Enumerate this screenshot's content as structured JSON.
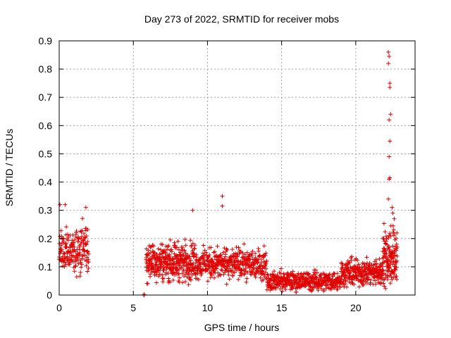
{
  "chart_data": {
    "type": "scatter",
    "title": "Day 273 of 2022, SRMTID for receiver mobs",
    "xlabel": "GPS time / hours",
    "ylabel": "SRMTID / TECUs",
    "xlim": [
      0,
      24
    ],
    "ylim": [
      0,
      0.9
    ],
    "xticks": [
      0,
      5,
      10,
      15,
      20
    ],
    "xtick_labels": [
      "0",
      "5",
      "10",
      "15",
      "20"
    ],
    "yticks": [
      0,
      0.1,
      0.2,
      0.3,
      0.4,
      0.5,
      0.6,
      0.7,
      0.8,
      0.9
    ],
    "ytick_labels": [
      "0",
      "0.1",
      "0.2",
      "0.3",
      "0.4",
      "0.5",
      "0.6",
      "0.7",
      "0.8",
      "0.9"
    ],
    "grid": true,
    "marker": "+",
    "color": "#e00000",
    "series": [
      {
        "name": "mobs",
        "segments": [
          {
            "x_range": [
              0.0,
              2.0
            ],
            "base": 0.16,
            "spread": 0.06,
            "count": 180
          },
          {
            "x_range": [
              5.7,
              5.75
            ],
            "base": 0.002,
            "spread": 0.002,
            "count": 4
          },
          {
            "x_range": [
              5.85,
              9.2
            ],
            "base": 0.12,
            "spread": 0.05,
            "count": 360
          },
          {
            "x_range": [
              9.2,
              14.0
            ],
            "base": 0.11,
            "spread": 0.04,
            "count": 420
          },
          {
            "x_range": [
              14.0,
              19.0
            ],
            "base": 0.05,
            "spread": 0.025,
            "count": 420
          },
          {
            "x_range": [
              19.0,
              21.8
            ],
            "base": 0.08,
            "spread": 0.035,
            "count": 260
          },
          {
            "x_range": [
              21.8,
              22.8
            ],
            "base": 0.14,
            "spread": 0.08,
            "count": 140
          }
        ],
        "highlights": [
          {
            "x": 0.05,
            "y": 0.32
          },
          {
            "x": 0.4,
            "y": 0.32
          },
          {
            "x": 1.8,
            "y": 0.31
          },
          {
            "x": 9.0,
            "y": 0.3
          },
          {
            "x": 11.0,
            "y": 0.35
          },
          {
            "x": 11.0,
            "y": 0.315
          },
          {
            "x": 22.2,
            "y": 0.86
          },
          {
            "x": 22.25,
            "y": 0.845
          },
          {
            "x": 22.2,
            "y": 0.82
          },
          {
            "x": 22.3,
            "y": 0.75
          },
          {
            "x": 22.3,
            "y": 0.735
          },
          {
            "x": 22.35,
            "y": 0.64
          },
          {
            "x": 22.25,
            "y": 0.62
          },
          {
            "x": 22.3,
            "y": 0.545
          },
          {
            "x": 22.25,
            "y": 0.49
          },
          {
            "x": 22.3,
            "y": 0.415
          },
          {
            "x": 22.25,
            "y": 0.41
          },
          {
            "x": 22.2,
            "y": 0.34
          },
          {
            "x": 22.45,
            "y": 0.31
          },
          {
            "x": 22.5,
            "y": 0.29
          },
          {
            "x": 22.6,
            "y": 0.27
          }
        ]
      }
    ]
  }
}
